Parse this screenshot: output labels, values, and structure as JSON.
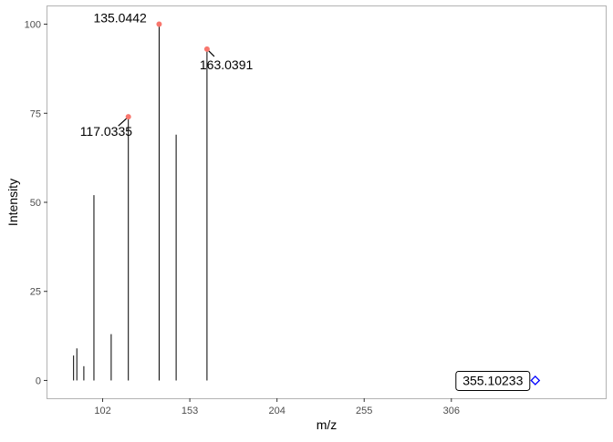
{
  "chart_data": {
    "type": "bar",
    "title": "",
    "xlabel": "m/z",
    "ylabel": "Intensity",
    "xlim": [
      69.7,
      396.3
    ],
    "ylim": [
      -5,
      105
    ],
    "grid": false,
    "x_ticks": [
      102,
      153,
      204,
      255,
      306
    ],
    "x_tick_labels": [
      "102",
      "153",
      "204",
      "255",
      "306"
    ],
    "y_ticks": [
      0,
      25,
      50,
      75,
      100
    ],
    "y_tick_labels": [
      "0",
      "25",
      "50",
      "75",
      "100"
    ],
    "peaks": [
      {
        "mz": 85.0,
        "intensity": 7
      },
      {
        "mz": 86.9,
        "intensity": 9
      },
      {
        "mz": 91.0,
        "intensity": 4
      },
      {
        "mz": 96.9,
        "intensity": 52
      },
      {
        "mz": 107.0,
        "intensity": 13
      },
      {
        "mz": 117.0335,
        "intensity": 74
      },
      {
        "mz": 135.0442,
        "intensity": 100
      },
      {
        "mz": 145.0,
        "intensity": 69
      },
      {
        "mz": 163.0391,
        "intensity": 93
      }
    ],
    "annotated_peaks": [
      {
        "mz": 117.0335,
        "intensity": 74,
        "label": "117.0335",
        "color": "#f8766d"
      },
      {
        "mz": 135.0442,
        "intensity": 100,
        "label": "135.0442",
        "color": "#f8766d"
      },
      {
        "mz": 163.0391,
        "intensity": 93,
        "label": "163.0391",
        "color": "#f8766d"
      }
    ],
    "precursor": {
      "mz": 355.10233,
      "intensity": 0,
      "label": "355.10233",
      "color": "#0000ff"
    }
  }
}
